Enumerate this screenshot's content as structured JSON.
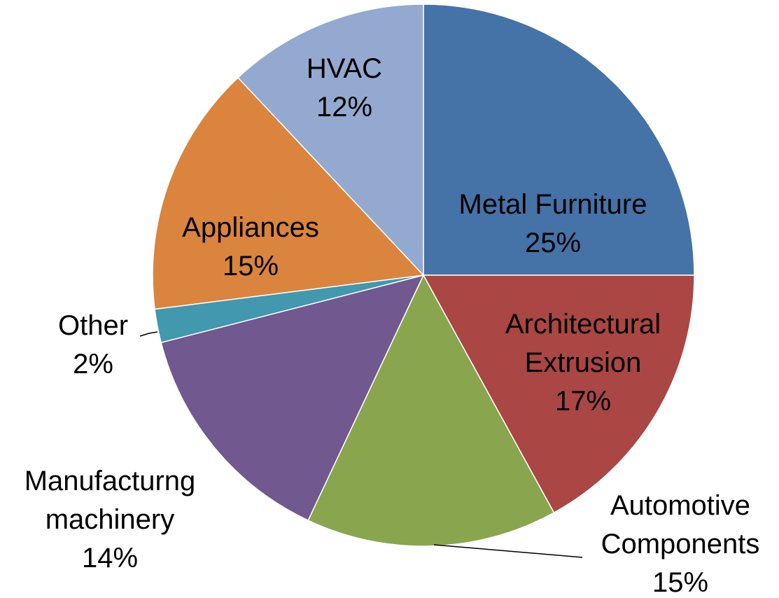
{
  "chart_data": {
    "type": "pie",
    "categories": [
      "Metal Furniture",
      "Architectural Extrusion",
      "Automotive Components",
      "Manufacturng machinery",
      "Other",
      "Appliances",
      "HVAC"
    ],
    "values": [
      25,
      17,
      15,
      14,
      2,
      15,
      12
    ],
    "value_labels": [
      "25%",
      "17%",
      "15%",
      "14%",
      "2%",
      "15%",
      "12%"
    ],
    "colors": [
      "#4572a7",
      "#aa4643",
      "#89a54e",
      "#71588f",
      "#4198af",
      "#db843d",
      "#93a9cf"
    ]
  }
}
